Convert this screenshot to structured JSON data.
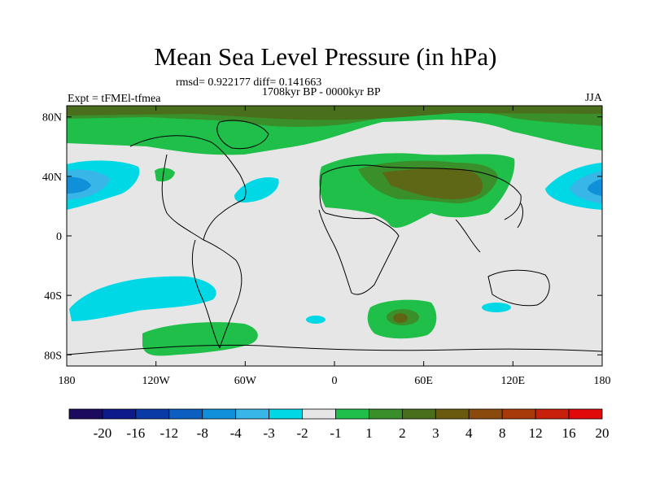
{
  "title": "Mean Sea Level Pressure (in hPa)",
  "stats_line": "rmsd= 0.922177 diff= 0.141663",
  "period_line": "1708kyr BP - 0000kyr BP",
  "experiment_label": "Expt = tFMEl-tfmea",
  "season": "JJA",
  "lat_labels": [
    "80N",
    "40N",
    "0",
    "40S",
    "80S"
  ],
  "lon_labels": [
    "180",
    "120W",
    "60W",
    "0",
    "60E",
    "120E",
    "180"
  ],
  "colorbar": {
    "colors": [
      "#1c0a5e",
      "#0d1a8a",
      "#0a3aa6",
      "#0a5fc0",
      "#1090d8",
      "#38b6e8",
      "#00d8e6",
      "#e6e6e6",
      "#1fbf4a",
      "#3a8f2a",
      "#4a6f1c",
      "#6a5a10",
      "#8a4a0c",
      "#a83a0a",
      "#c8200a",
      "#e00a0a"
    ],
    "labels": [
      "-20",
      "-16",
      "-12",
      "-8",
      "-4",
      "-3",
      "-2",
      "-1",
      "1",
      "2",
      "3",
      "4",
      "8",
      "12",
      "16",
      "20"
    ]
  },
  "colors": {
    "background_field": "#e6e6e6",
    "positive_1_2": "#1fbf4a",
    "positive_2_3": "#3a8f2a",
    "positive_3_4": "#4a6f1c",
    "negative_m2_m1": "#00d8e6",
    "negative_m3_m2": "#38b6e8",
    "negative_m4_m3": "#1090d8"
  }
}
